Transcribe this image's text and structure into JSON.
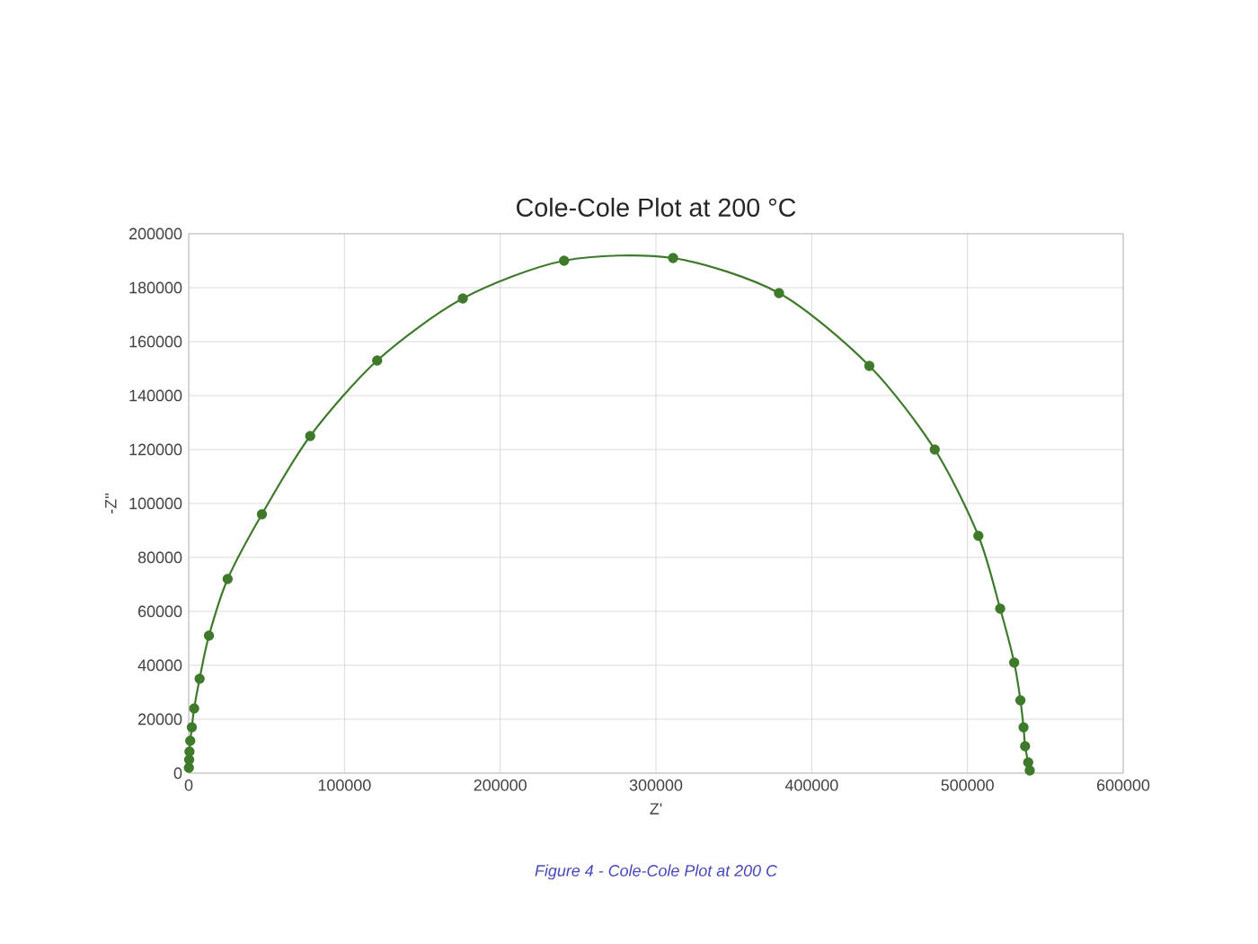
{
  "chart_data": {
    "type": "line",
    "title": "Cole-Cole Plot at 200 °C",
    "xlabel": "Z'",
    "ylabel": "-Z''",
    "annotations": [
      "Figure 4 - Cole-Cole Plot at 200 C"
    ],
    "xlim": [
      0,
      600000
    ],
    "ylim": [
      0,
      200000
    ],
    "xticks": [
      0,
      100000,
      200000,
      300000,
      400000,
      500000,
      600000
    ],
    "yticks": [
      0,
      20000,
      40000,
      60000,
      80000,
      100000,
      120000,
      140000,
      160000,
      180000,
      200000
    ],
    "grid": true,
    "marker": "circle",
    "line_style": "solid",
    "series": [
      {
        "color": "#3f7a2c",
        "x": [
          100,
          300,
          500,
          1000,
          2000,
          3500,
          7000,
          13000,
          25000,
          47000,
          78000,
          121000,
          176000,
          241000,
          311000,
          379000,
          437000,
          479000,
          507000,
          521000,
          530000,
          534000,
          536000,
          537000,
          539000,
          540000
        ],
        "values": [
          2000,
          5000,
          8000,
          12000,
          17000,
          24000,
          35000,
          51000,
          72000,
          96000,
          125000,
          153000,
          176000,
          190000,
          191000,
          178000,
          151000,
          120000,
          88000,
          61000,
          41000,
          27000,
          17000,
          10000,
          4000,
          1000
        ]
      }
    ]
  }
}
